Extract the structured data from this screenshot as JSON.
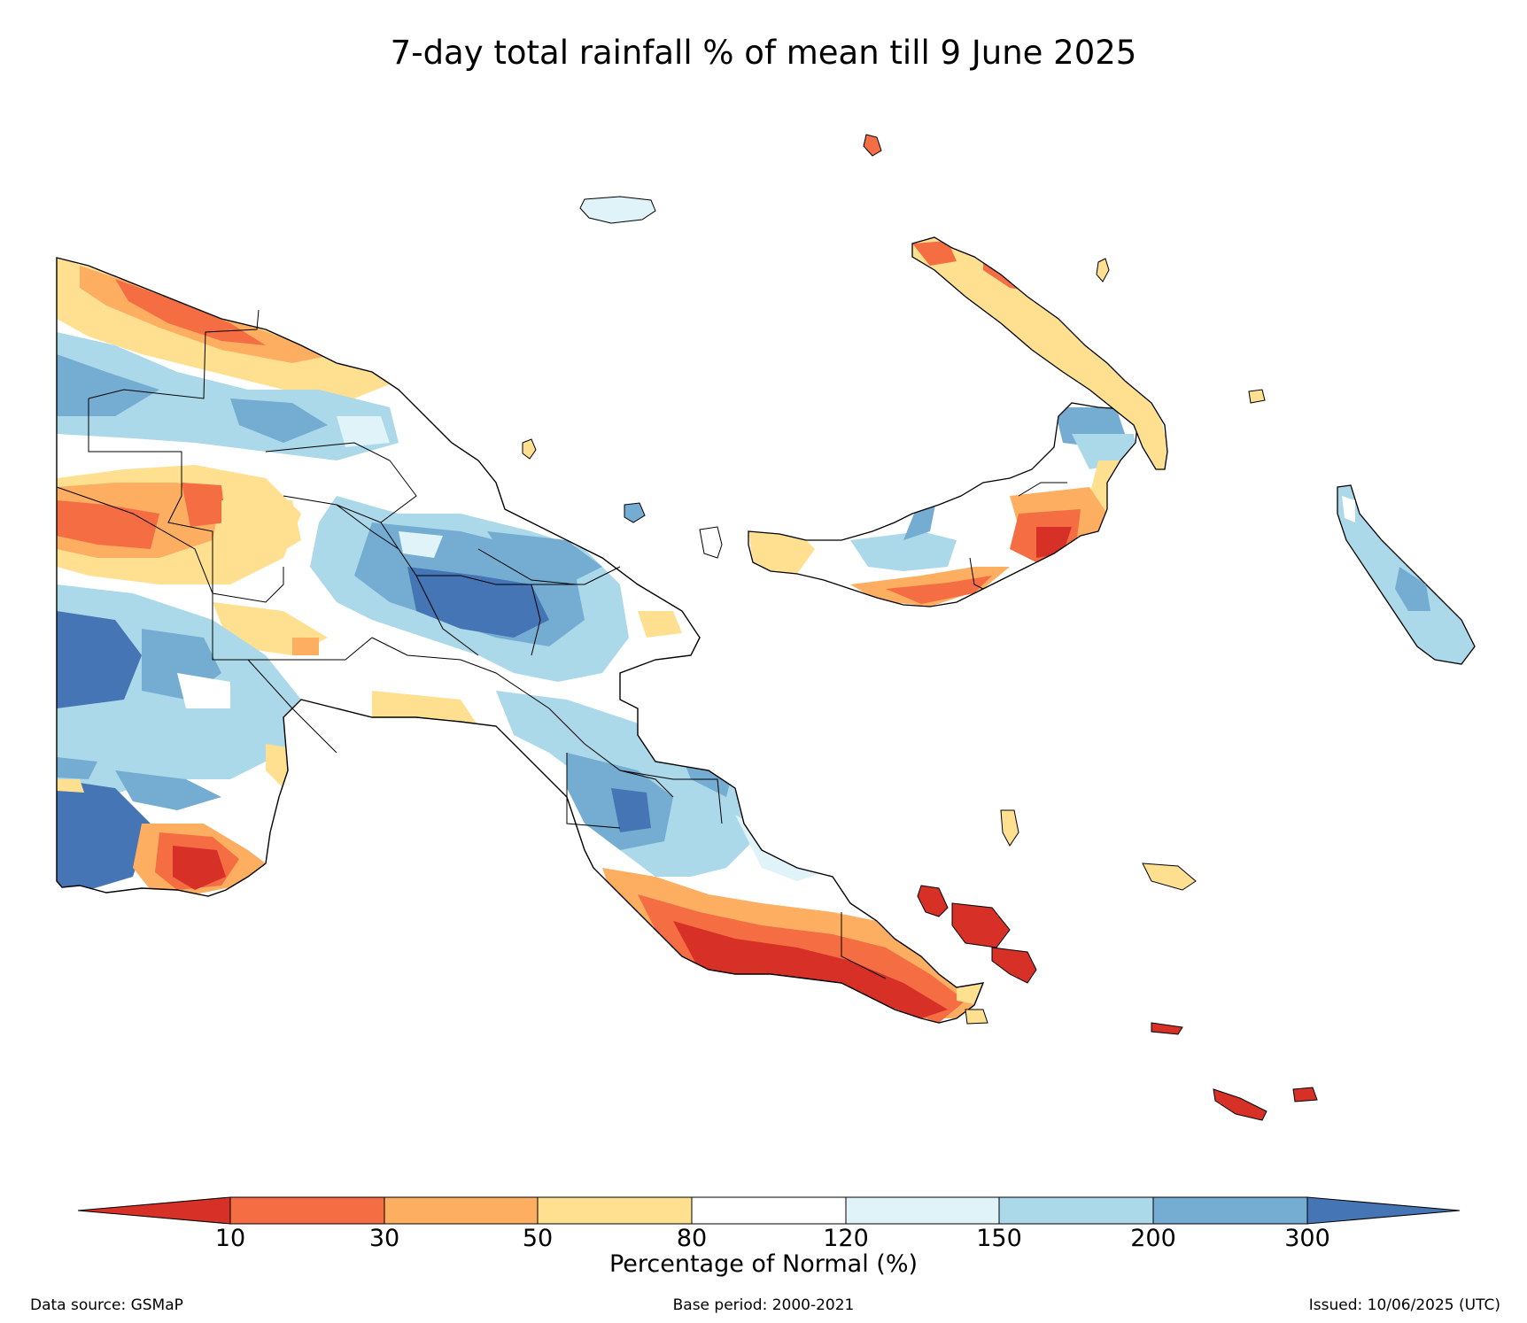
{
  "title": "7-day total rainfall % of mean till 9 June 2025",
  "colorbar": {
    "title": "Percentage of Normal (%)",
    "ticks": [
      "10",
      "30",
      "50",
      "80",
      "120",
      "150",
      "200",
      "300"
    ],
    "colors": [
      "#d73027",
      "#f46d43",
      "#fdae61",
      "#fee090",
      "#ffffff",
      "#e0f3f8",
      "#abd9e9",
      "#74add1",
      "#4575b4"
    ]
  },
  "footer": {
    "source": "Data source: GSMaP",
    "base_period": "Base period: 2000-2021",
    "issued": "Issued: 10/06/2025 (UTC)"
  }
}
